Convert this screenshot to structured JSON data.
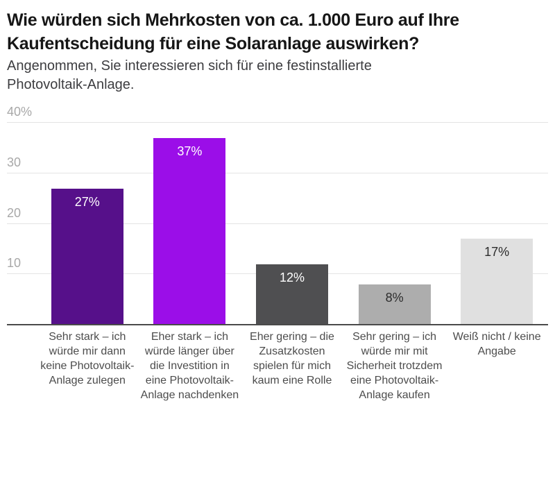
{
  "header": {
    "title_lines": [
      "Wie würden sich Mehrkosten von ca. 1.000 Euro auf Ihre",
      "Kaufentscheidung für eine Solaranlage auswirken?"
    ],
    "subtitle_lines": [
      "Angenommen, Sie interessieren sich für eine festinstallierte",
      "Photovoltaik-Anlage."
    ]
  },
  "chart_data": {
    "type": "bar",
    "title": "Wie würden sich Mehrkosten von ca. 1.000 Euro auf Ihre Kaufentscheidung für eine Solaranlage auswirken?",
    "subtitle": "Angenommen, Sie interessieren sich für eine festinstallierte Photovoltaik-Anlage.",
    "categories": [
      "Sehr stark – ich würde mir dann keine Photovoltaik-Anlage zulegen",
      "Eher stark – ich würde länger über die Investition in eine Photovoltaik-Anlage nachdenken",
      "Eher gering – die Zusatzkosten spielen für mich kaum eine Rolle",
      "Sehr gering – ich würde mir mit Sicherheit trotzdem eine Photovoltaik-Anlage kaufen",
      "Weiß nicht / keine Angabe"
    ],
    "values": [
      27,
      37,
      12,
      8,
      17
    ],
    "value_labels": [
      "27%",
      "37%",
      "12%",
      "8%",
      "17%"
    ],
    "bar_colors": [
      "#56108A",
      "#9B0EE8",
      "#4F4F51",
      "#ADADAD",
      "#E0E0E0"
    ],
    "value_label_colors": [
      "#FFFFFF",
      "#FFFFFF",
      "#FFFFFF",
      "#2B2B2B",
      "#2B2B2B"
    ],
    "xlabel": "",
    "ylabel": "",
    "ylim": [
      0,
      40
    ],
    "yticks": [
      {
        "label": "40%",
        "value": 40
      },
      {
        "label": "30",
        "value": 30
      },
      {
        "label": "20",
        "value": 20
      },
      {
        "label": "10",
        "value": 10
      }
    ],
    "grid": true,
    "legend": "none",
    "colors": {
      "background": "#FFFFFF",
      "title_text": "#161616",
      "subtitle_text": "#3D3D40",
      "ytick_text": "#A8A8A8",
      "category_text": "#4C4C4C",
      "grid": "#E4E4E4",
      "axis": "#4A4A4A"
    }
  }
}
